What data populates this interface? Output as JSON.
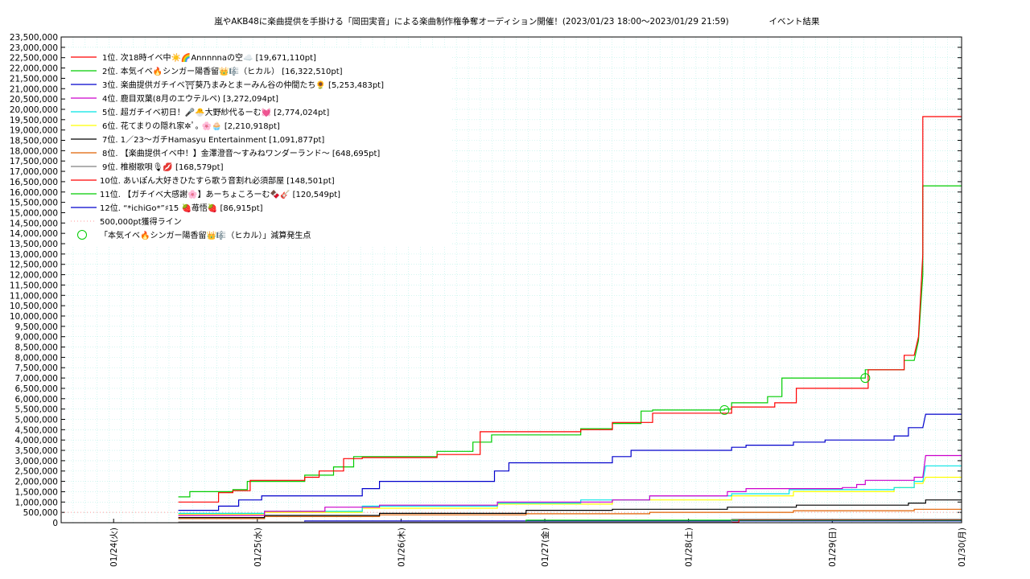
{
  "chart_data": {
    "type": "line",
    "title": "嵐やAKB48に楽曲提供を手掛ける「岡田実音」による楽曲制作権争奪オーディション開催！(2023/01/23 18:00～2023/01/29 21:59)",
    "subtitle": "イベント結果",
    "xlim": [
      0.0,
      6.15
    ],
    "ylim": [
      0,
      23500000
    ],
    "y_ticks": [
      0,
      500000,
      1000000,
      1500000,
      2000000,
      2500000,
      3000000,
      3500000,
      4000000,
      4500000,
      5000000,
      5500000,
      6000000,
      6500000,
      7000000,
      7500000,
      8000000,
      8500000,
      9000000,
      9500000,
      10000000,
      10500000,
      11000000,
      11500000,
      12000000,
      12500000,
      13000000,
      13500000,
      14000000,
      14500000,
      15000000,
      15500000,
      16000000,
      16500000,
      17000000,
      17500000,
      18000000,
      18500000,
      19000000,
      19500000,
      20000000,
      20500000,
      21000000,
      21500000,
      22000000,
      22500000,
      23000000,
      23500000
    ],
    "y_tick_labels": [
      "0",
      "500,000",
      "1,000,000",
      "1,500,000",
      "2,000,000",
      "2,500,000",
      "3,000,000",
      "3,500,000",
      "4,000,000",
      "4,500,000",
      "5,000,000",
      "5,500,000",
      "6,000,000",
      "6,500,000",
      "7,000,000",
      "7,500,000",
      "8,000,000",
      "8,500,000",
      "9,000,000",
      "9,500,000",
      "10,000,000",
      "10,500,000",
      "11,000,000",
      "11,500,000",
      "12,000,000",
      "12,500,000",
      "13,000,000",
      "13,500,000",
      "14,000,000",
      "14,500,000",
      "15,000,000",
      "15,500,000",
      "16,000,000",
      "16,500,000",
      "17,000,000",
      "17,500,000",
      "18,000,000",
      "18,500,000",
      "19,000,000",
      "19,500,000",
      "20,000,000",
      "20,500,000",
      "21,000,000",
      "21,500,000",
      "22,000,000",
      "22,500,000",
      "23,000,000",
      "23,500,000"
    ],
    "x_ticks": [
      0.25,
      1.25,
      2.25,
      3.25,
      4.25,
      5.25,
      6.25
    ],
    "x_tick_labels": [
      "01/24(火)",
      "01/25(水)",
      "01/26(木)",
      "01/27(金)",
      "01/28(土)",
      "01/29(日)",
      "01/30(月)"
    ],
    "grid": true,
    "legend_position": "top-left",
    "series": [
      {
        "name": "1位. 次18時イベ中☀️🌈Annnnnaの空☁️ [19,671,110pt]",
        "color": "#ff0000",
        "x": [
          0.7,
          0.98,
          0.98,
          1.08,
          1.08,
          1.2,
          1.2,
          1.58,
          1.58,
          1.68,
          1.68,
          1.85,
          1.85,
          1.98,
          1.98,
          2.5,
          2.5,
          2.8,
          2.8,
          2.92,
          2.92,
          3.5,
          3.5,
          3.72,
          3.72,
          4.0,
          4.0,
          4.1,
          4.1,
          4.55,
          4.55,
          4.85,
          4.85,
          5.0,
          5.0,
          5.2,
          5.2,
          5.5,
          5.5,
          5.75,
          5.75,
          5.82,
          5.85,
          5.88,
          5.88,
          6.15
        ],
        "y": [
          1000000,
          1000000,
          1450000,
          1450000,
          1550000,
          1550000,
          2050000,
          2050000,
          2200000,
          2200000,
          2500000,
          2500000,
          3100000,
          3100000,
          3150000,
          3150000,
          3300000,
          3300000,
          4400000,
          4400000,
          4400000,
          4400000,
          4500000,
          4500000,
          4850000,
          4850000,
          5300000,
          5300000,
          5300000,
          5300000,
          5600000,
          5600000,
          5800000,
          5800000,
          6500000,
          6500000,
          6500000,
          6500000,
          7400000,
          7400000,
          8100000,
          8100000,
          9000000,
          13000000,
          19650000,
          19650000
        ]
      },
      {
        "name": "2位. 本気イベ🔥シンガー陽香留👑🎼（ヒカル） [16,322,510pt]",
        "color": "#00cc00",
        "x": [
          0.7,
          0.78,
          0.78,
          1.08,
          1.08,
          1.18,
          1.18,
          1.58,
          1.58,
          1.68,
          1.68,
          1.78,
          1.78,
          1.92,
          1.92,
          2.5,
          2.5,
          2.75,
          2.75,
          2.88,
          2.88,
          3.5,
          3.5,
          3.72,
          3.72,
          3.92,
          3.92,
          4.0,
          4.0,
          4.1,
          4.1,
          4.5,
          4.5,
          4.55,
          4.55,
          4.8,
          4.8,
          4.9,
          4.9,
          5.0,
          5.0,
          5.48,
          5.48,
          5.75,
          5.75,
          5.82,
          5.85,
          5.88,
          5.88,
          6.15
        ],
        "y": [
          1250000,
          1250000,
          1500000,
          1500000,
          1600000,
          1600000,
          2000000,
          2000000,
          2300000,
          2300000,
          2300000,
          2300000,
          2700000,
          2700000,
          3200000,
          3200000,
          3450000,
          3450000,
          3900000,
          3900000,
          4250000,
          4250000,
          4550000,
          4550000,
          4800000,
          4800000,
          5400000,
          5400000,
          5450000,
          5450000,
          5450000,
          5450000,
          5500000,
          5500000,
          5800000,
          5800000,
          6100000,
          6100000,
          7000000,
          7000000,
          7000000,
          7000000,
          7400000,
          7400000,
          7850000,
          7850000,
          8800000,
          12000000,
          16300000,
          16300000
        ]
      },
      {
        "name": "3位. 楽曲提供ガチイベ⛩葵乃まみとまーみん谷の仲間たち🌻 [5,253,483pt]",
        "color": "#0000cc",
        "x": [
          0.7,
          0.98,
          0.98,
          1.12,
          1.12,
          1.28,
          1.28,
          1.98,
          1.98,
          2.1,
          2.1,
          2.9,
          2.9,
          3.0,
          3.0,
          3.12,
          3.12,
          3.72,
          3.72,
          3.85,
          3.85,
          4.55,
          4.55,
          4.65,
          4.65,
          4.98,
          4.98,
          5.2,
          5.2,
          5.68,
          5.68,
          5.78,
          5.78,
          5.88,
          5.9,
          6.15
        ],
        "y": [
          600000,
          600000,
          800000,
          800000,
          1100000,
          1100000,
          1300000,
          1300000,
          1650000,
          1650000,
          2000000,
          2000000,
          2500000,
          2500000,
          2900000,
          2900000,
          2900000,
          2900000,
          3200000,
          3200000,
          3500000,
          3500000,
          3650000,
          3650000,
          3750000,
          3750000,
          3900000,
          3900000,
          4000000,
          4000000,
          4200000,
          4200000,
          4600000,
          4600000,
          5250000,
          5250000
        ]
      },
      {
        "name": "4位. 鹿目双葉(8月のエウテルペ) [3,272,094pt]",
        "color": "#cc00cc",
        "x": [
          0.7,
          1.3,
          1.3,
          1.72,
          1.72,
          2.1,
          2.1,
          2.92,
          2.92,
          3.72,
          3.72,
          3.98,
          3.98,
          4.52,
          4.52,
          4.65,
          4.65,
          5.32,
          5.32,
          5.42,
          5.42,
          5.48,
          5.48,
          5.82,
          5.82,
          5.88,
          5.9,
          6.15
        ],
        "y": [
          350000,
          350000,
          550000,
          550000,
          750000,
          750000,
          850000,
          850000,
          1000000,
          1000000,
          1100000,
          1100000,
          1300000,
          1300000,
          1500000,
          1500000,
          1650000,
          1650000,
          1700000,
          1700000,
          1850000,
          1850000,
          2050000,
          2050000,
          2200000,
          2200000,
          3250000,
          3250000
        ]
      },
      {
        "name": "5位. 超ガチイベ初日！🎤🐣大野紗代るーむ💓 [2,774,024pt]",
        "color": "#00e5e5",
        "x": [
          0.7,
          1.3,
          1.3,
          1.98,
          1.98,
          2.92,
          2.92,
          3.5,
          3.5,
          3.98,
          3.98,
          4.55,
          4.55,
          4.95,
          4.95,
          5.68,
          5.68,
          5.82,
          5.82,
          5.88,
          5.9,
          6.15
        ],
        "y": [
          450000,
          450000,
          550000,
          550000,
          800000,
          800000,
          950000,
          950000,
          1100000,
          1100000,
          1300000,
          1300000,
          1400000,
          1400000,
          1600000,
          1600000,
          1700000,
          1700000,
          2000000,
          2000000,
          2750000,
          2750000
        ]
      },
      {
        "name": "6位. 花てまりの隠れ家✲ﾟ｡ 🌸🧁 [2,210,918pt]",
        "color": "#ffff00",
        "x": [
          0.7,
          1.3,
          1.3,
          1.98,
          1.98,
          2.92,
          2.92,
          3.72,
          3.72,
          4.55,
          4.55,
          4.98,
          4.98,
          5.68,
          5.68,
          5.82,
          5.82,
          5.88,
          5.9,
          6.15
        ],
        "y": [
          400000,
          400000,
          500000,
          500000,
          700000,
          700000,
          900000,
          900000,
          1100000,
          1100000,
          1300000,
          1300000,
          1500000,
          1500000,
          1700000,
          1700000,
          1900000,
          1900000,
          2200000,
          2200000
        ]
      },
      {
        "name": "7位. 1／23〜ガチHamasyu Entertainment [1,091,877pt]",
        "color": "#000000",
        "x": [
          0.7,
          1.3,
          1.3,
          2.1,
          2.1,
          3.12,
          3.12,
          3.72,
          3.72,
          4.52,
          4.52,
          5.0,
          5.0,
          5.78,
          5.78,
          5.9,
          5.9,
          6.15
        ],
        "y": [
          250000,
          250000,
          350000,
          350000,
          450000,
          450000,
          600000,
          600000,
          650000,
          650000,
          750000,
          750000,
          850000,
          850000,
          950000,
          950000,
          1100000,
          1100000
        ]
      },
      {
        "name": "8位. 【楽曲提供イベ中！】金澤澄音〜すみねワンダーランド〜 [648,695pt]",
        "color": "#e06000",
        "x": [
          0.7,
          1.3,
          1.3,
          2.1,
          2.1,
          3.12,
          3.12,
          3.98,
          3.98,
          4.98,
          4.98,
          5.82,
          5.82,
          6.15
        ],
        "y": [
          200000,
          200000,
          300000,
          300000,
          380000,
          380000,
          430000,
          430000,
          500000,
          500000,
          580000,
          580000,
          650000,
          650000
        ]
      },
      {
        "name": "9位. 椎樹歌唄🎙💋 [168,579pt]",
        "color": "#808080",
        "x": [
          0.7,
          4.55,
          4.55,
          6.15
        ],
        "y": [
          30000,
          30000,
          168000,
          168000
        ]
      },
      {
        "name": "10位. あいぽん大好きひたすら歌う音割れ必須部屋 [148,501pt]",
        "color": "#ff0000",
        "x": [
          0.7,
          4.6,
          4.6,
          6.15
        ],
        "y": [
          20000,
          20000,
          148000,
          148000
        ]
      },
      {
        "name": "11位. 【ガチイベ大感謝🌸】あーちょころーむ🍫🎸 [120,549pt]",
        "color": "#00cc00",
        "x": [
          0.7,
          3.12,
          3.12,
          6.15
        ],
        "y": [
          10000,
          10000,
          120000,
          120000
        ]
      },
      {
        "name": "12位. “*ichiGo*”♯15 🍓苺悟🍓 [86,915pt]",
        "color": "#0000cc",
        "x": [
          1.58,
          1.58,
          6.15
        ],
        "y": [
          0,
          86000,
          86000
        ]
      }
    ],
    "threshold_line": {
      "name": "500,000pt獲得ライン",
      "value": 500000,
      "color": "#ff9999"
    },
    "markers": {
      "name": "「本気イベ🔥シンガー陽香留👑🎼（ヒカル）」減算発生点",
      "color": "#00cc00",
      "points": [
        {
          "x": 4.5,
          "y": 5450000
        },
        {
          "x": 5.48,
          "y": 7000000
        }
      ]
    }
  }
}
